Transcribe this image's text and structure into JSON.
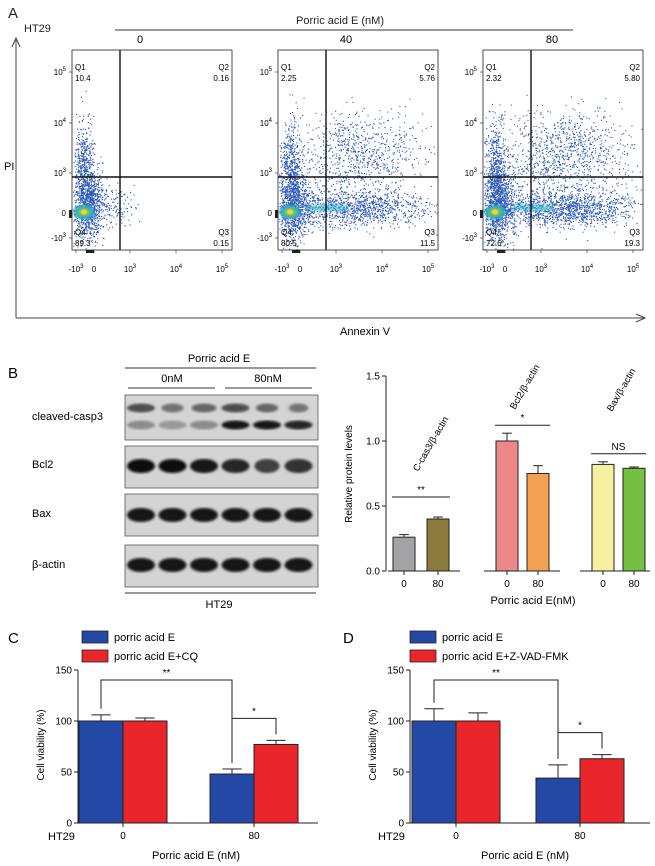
{
  "panel_labels": {
    "a": "A",
    "b": "B",
    "c": "C",
    "d": "D"
  },
  "panel_a": {
    "cell_line": "HT29",
    "treatment": "Porric acid E (nM)",
    "y_axis_label": "PI",
    "x_axis_label": "Annexin V",
    "y_ticks": [
      "10^5",
      "10^4",
      "10^3",
      "0",
      "-10^3"
    ],
    "x_ticks": [
      "-10^3",
      "0",
      "10^3",
      "10^4",
      "10^5"
    ],
    "plots": [
      {
        "dose": "0",
        "q1_label": "Q1",
        "q1": "10.4",
        "q2_label": "Q2",
        "q2": "0.16",
        "q3_label": "Q3",
        "q3": "0.15",
        "q4_label": "Q4",
        "q4": "89.3"
      },
      {
        "dose": "40",
        "q1_label": "Q1",
        "q1": "2.25",
        "q2_label": "Q2",
        "q2": "5.76",
        "q3_label": "Q3",
        "q3": "11.5",
        "q4_label": "Q4",
        "q4": "80.5"
      },
      {
        "dose": "80",
        "q1_label": "Q1",
        "q1": "2.32",
        "q2_label": "Q2",
        "q2": "5.80",
        "q3_label": "Q3",
        "q3": "19.3",
        "q4_label": "Q4",
        "q4": "72.6"
      }
    ]
  },
  "panel_b": {
    "western": {
      "treatment": "Porric acid E",
      "doses": [
        "0nM",
        "80nM"
      ],
      "rows": [
        "cleaved-casp3",
        "Bcl2",
        "Bax",
        "β-actin"
      ],
      "cell_line": "HT29"
    },
    "bar_labels": [
      "C-cas3/β-actin",
      "Bcl2/β-actin",
      "Bax/β-actin"
    ],
    "significance": [
      "**",
      "*",
      "NS"
    ]
  },
  "panel_c": {
    "legend": [
      "porric acid E",
      "porric acid E+CQ"
    ],
    "sig": [
      "**",
      "*"
    ],
    "cell_line": "HT29"
  },
  "panel_d": {
    "legend": [
      "porric acid E",
      "porric acid E+Z-VAD-FMK"
    ],
    "sig": [
      "**",
      "*"
    ],
    "cell_line": "HT29"
  },
  "chart_data": [
    {
      "type": "bar",
      "id": "panel-b-protein",
      "title": "",
      "xlabel": "Porric acid E(nM)",
      "ylabel": "Relative protein levels",
      "ylim": [
        0,
        1.5
      ],
      "yticks": [
        0.0,
        0.5,
        1.0,
        1.5
      ],
      "ytick_labels": [
        "0.0",
        "0.5",
        "1.0",
        "1.5"
      ],
      "groups": [
        {
          "name": "C-cas3/β-actin",
          "categories": [
            "0",
            "80"
          ],
          "values": [
            0.26,
            0.4
          ],
          "errors": [
            0.02,
            0.015
          ],
          "colors": [
            "#a3a3a6",
            "#8b7a3c"
          ]
        },
        {
          "name": "Bcl2/β-actin",
          "categories": [
            "0",
            "80"
          ],
          "values": [
            1.0,
            0.75
          ],
          "errors": [
            0.06,
            0.06
          ],
          "colors": [
            "#ec8888",
            "#f3a052"
          ]
        },
        {
          "name": "Bax/β-actin",
          "categories": [
            "0",
            "80"
          ],
          "values": [
            0.82,
            0.79
          ],
          "errors": [
            0.02,
            0.01
          ],
          "colors": [
            "#f6f0a0",
            "#74c043"
          ]
        }
      ]
    },
    {
      "type": "bar",
      "id": "panel-c-viability",
      "xlabel": "Porric acid E (nM)",
      "ylabel": "Cell viability (%)",
      "ylim": [
        0,
        150
      ],
      "yticks": [
        0,
        50,
        100,
        150
      ],
      "categories": [
        "0",
        "80"
      ],
      "series": [
        {
          "name": "porric acid E",
          "values": [
            100,
            48
          ],
          "errors": [
            6,
            5
          ],
          "color": "#2449a5"
        },
        {
          "name": "porric acid E+CQ",
          "values": [
            100,
            77
          ],
          "errors": [
            3,
            4
          ],
          "color": "#e8262b"
        }
      ]
    },
    {
      "type": "bar",
      "id": "panel-d-viability",
      "xlabel": "Porric acid E (nM)",
      "ylabel": "Cell viability (%)",
      "ylim": [
        0,
        150
      ],
      "yticks": [
        0,
        50,
        100,
        150
      ],
      "categories": [
        "0",
        "80"
      ],
      "series": [
        {
          "name": "porric acid E",
          "values": [
            100,
            44
          ],
          "errors": [
            12,
            13
          ],
          "color": "#2449a5"
        },
        {
          "name": "porric acid E+Z-VAD-FMK",
          "values": [
            100,
            63
          ],
          "errors": [
            8,
            4
          ],
          "color": "#e8262b"
        }
      ]
    }
  ]
}
